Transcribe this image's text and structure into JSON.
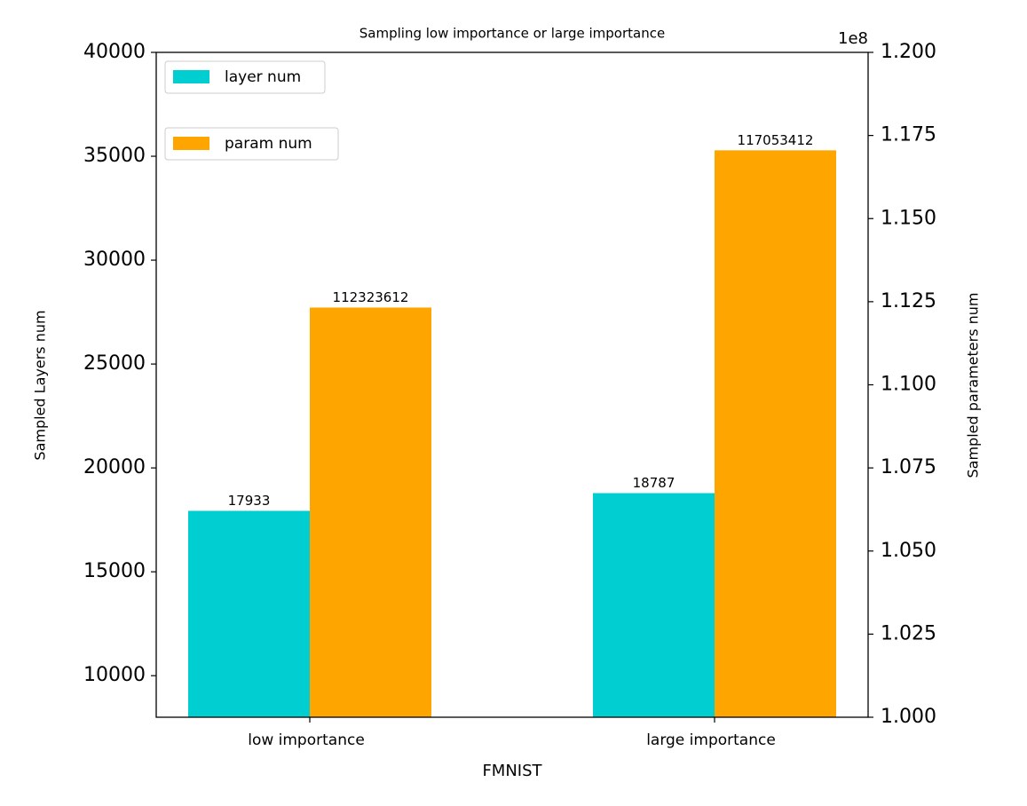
{
  "chart_data": {
    "type": "bar",
    "title": "Sampling low importance or large importance",
    "xlabel": "FMNIST",
    "ylabel": "Sampled Layers num",
    "y2label": "Sampled parameters num",
    "y2offset": "1e8",
    "categories": [
      "low importance",
      "large importance"
    ],
    "series": [
      {
        "name": "layer num",
        "color": "#00ced1",
        "values": [
          17933,
          18787
        ]
      },
      {
        "name": "param num",
        "color": "#ffa500",
        "values": [
          112323612,
          117053412
        ],
        "axis": "y2"
      }
    ],
    "ylim": [
      8000,
      40000
    ],
    "yticks": [
      10000,
      15000,
      20000,
      25000,
      30000,
      35000,
      40000
    ],
    "y2lim": [
      100000000,
      120000000
    ],
    "y2ticks": [
      {
        "value": 100000000,
        "label": "1.000"
      },
      {
        "value": 102500000,
        "label": "1.025"
      },
      {
        "value": 105000000,
        "label": "1.050"
      },
      {
        "value": 107500000,
        "label": "1.075"
      },
      {
        "value": 110000000,
        "label": "1.100"
      },
      {
        "value": 112500000,
        "label": "1.125"
      },
      {
        "value": 115000000,
        "label": "1.150"
      },
      {
        "value": 117500000,
        "label": "1.175"
      },
      {
        "value": 120000000,
        "label": "1.200"
      }
    ],
    "legend": "upper left"
  }
}
